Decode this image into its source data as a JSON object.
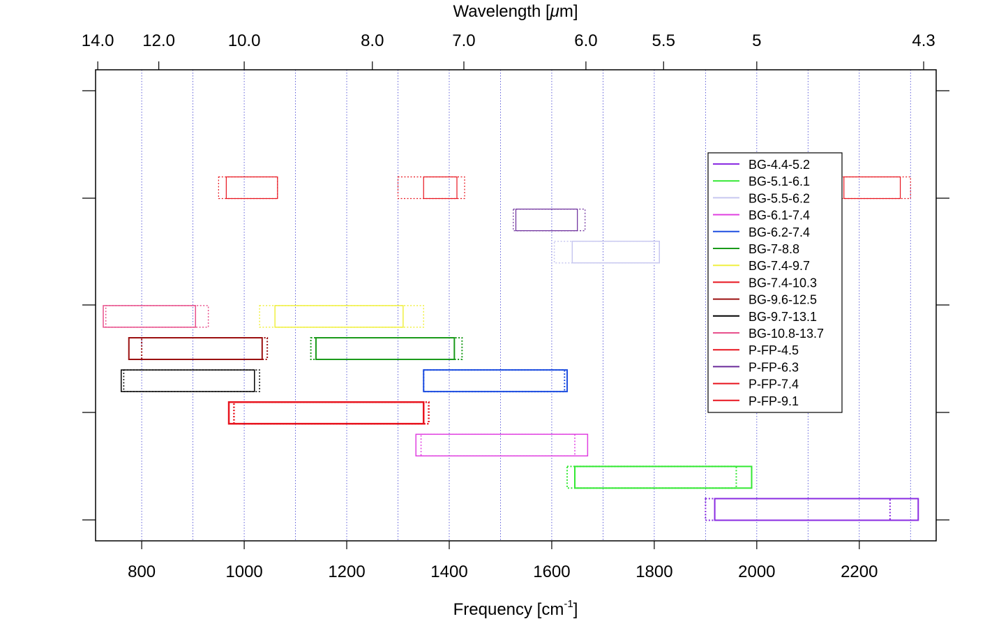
{
  "chart_data": {
    "type": "range-bar",
    "xlabel": "Frequency [cm",
    "xlabel_superscript": "-1",
    "xlabel_suffix": "]",
    "top_label_prefix": "Wavelength [",
    "top_label_mu": "μ",
    "top_label_suffix": "m]",
    "xlim": [
      710,
      2350
    ],
    "x_ticks": [
      800,
      1000,
      1200,
      1400,
      1600,
      1800,
      2000,
      2200
    ],
    "x_tick_labels": [
      "800",
      "1000",
      "1200",
      "1400",
      "1600",
      "1800",
      "2000",
      "2200"
    ],
    "x_gridlines": [
      800,
      900,
      1000,
      1100,
      1200,
      1300,
      1400,
      1500,
      1600,
      1700,
      1800,
      1900,
      2000,
      2100,
      2200,
      2300
    ],
    "top_ticks": [
      {
        "um": 14.0,
        "label": "14.0"
      },
      {
        "um": 12.0,
        "label": "12.0"
      },
      {
        "um": 10.0,
        "label": "10.0"
      },
      {
        "um": 8.0,
        "label": "8.0"
      },
      {
        "um": 7.0,
        "label": "7.0"
      },
      {
        "um": 6.0,
        "label": "6.0"
      },
      {
        "um": 5.5,
        "label": "5.5"
      },
      {
        "um": 5.0,
        "label": "5"
      },
      {
        "um": 4.3,
        "label": "4.3"
      }
    ],
    "grid": true,
    "legend_position": "right",
    "series": [
      {
        "name": "BG-4.4-5.2",
        "color": "#8a2be2",
        "row": 0,
        "solid": [
          1918,
          2315
        ],
        "dotted": [
          1900,
          2260
        ],
        "lw": 2
      },
      {
        "name": "BG-5.1-6.1",
        "color": "#33e833",
        "row": 1,
        "solid": [
          1645,
          1990
        ],
        "dotted": [
          1630,
          1960
        ],
        "lw": 2
      },
      {
        "name": "BG-5.5-6.2",
        "color": "#c8c8f0",
        "row": 8,
        "solid": [
          1640,
          1810
        ],
        "dotted": [
          1605,
          1810
        ],
        "lw": 1.5
      },
      {
        "name": "BG-6.1-7.4",
        "color": "#e040e0",
        "row": 2,
        "solid": [
          1335,
          1670
        ],
        "dotted": [
          1345,
          1645
        ],
        "lw": 1.5
      },
      {
        "name": "BG-6.2-7.4",
        "color": "#1f4fe0",
        "row": 4,
        "solid": [
          1350,
          1630
        ],
        "dotted": [
          1350,
          1625
        ],
        "lw": 2
      },
      {
        "name": "BG-7-8.8",
        "color": "#1a9a1a",
        "row": 5,
        "solid": [
          1140,
          1410
        ],
        "dotted": [
          1130,
          1425
        ],
        "lw": 2
      },
      {
        "name": "BG-7.4-9.7",
        "color": "#f0f040",
        "row": 6,
        "solid": [
          1060,
          1310
        ],
        "dotted": [
          1030,
          1350
        ],
        "lw": 1.5
      },
      {
        "name": "BG-7.4-10.3",
        "color": "#e8141e",
        "row": 3,
        "solid": [
          970,
          1350
        ],
        "dotted": [
          980,
          1360
        ],
        "lw": 2.5
      },
      {
        "name": "BG-9.6-12.5",
        "color": "#9b1010",
        "row": 5,
        "solid": [
          775,
          1035
        ],
        "dotted": [
          800,
          1045
        ],
        "lw": 2
      },
      {
        "name": "BG-9.7-13.1",
        "color": "#000000",
        "row": 4,
        "solid": [
          760,
          1020
        ],
        "dotted": [
          765,
          1030
        ],
        "lw": 1.5
      },
      {
        "name": "BG-10.8-13.7",
        "color": "#e8508c",
        "row": 6,
        "solid": [
          725,
          905
        ],
        "dotted": [
          730,
          930
        ],
        "lw": 1.5
      },
      {
        "name": "P-FP-4.5",
        "color": "#e8141e",
        "row": 10,
        "solid": [
          2170,
          2280
        ],
        "dotted": [
          2125,
          2300
        ],
        "lw": 1.2
      },
      {
        "name": "P-FP-6.3",
        "color": "#6a2a9a",
        "row": 9,
        "solid": [
          1530,
          1650
        ],
        "dotted": [
          1525,
          1665
        ],
        "lw": 1.2
      },
      {
        "name": "P-FP-7.4",
        "color": "#e8141e",
        "row": 10,
        "solid": [
          1350,
          1415
        ],
        "dotted": [
          1300,
          1430
        ],
        "lw": 1.2
      },
      {
        "name": "P-FP-9.1",
        "color": "#e8141e",
        "row": 10,
        "solid": [
          965,
          1065
        ],
        "dotted": [
          950,
          1065
        ],
        "lw": 1.2
      }
    ]
  }
}
